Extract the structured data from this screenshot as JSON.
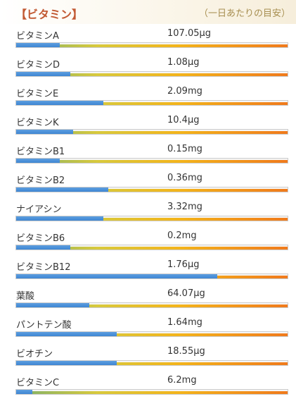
{
  "header": {
    "title": "【ビタミン】",
    "note": "（一日あたりの目安）"
  },
  "vitamins": [
    {
      "name": "ビタミンA",
      "value": "107.05μg",
      "fill": 0.16
    },
    {
      "name": "ビタミンD",
      "value": "1.08μg",
      "fill": 0.2
    },
    {
      "name": "ビタミンE",
      "value": "2.09mg",
      "fill": 0.32
    },
    {
      "name": "ビタミンK",
      "value": "10.4μg",
      "fill": 0.21
    },
    {
      "name": "ビタミンB1",
      "value": "0.15mg",
      "fill": 0.16
    },
    {
      "name": "ビタミンB2",
      "value": "0.36mg",
      "fill": 0.34
    },
    {
      "name": "ナイアシン",
      "value": "3.32mg",
      "fill": 0.32
    },
    {
      "name": "ビタミンB6",
      "value": "0.2mg",
      "fill": 0.2
    },
    {
      "name": "ビタミンB12",
      "value": "1.76μg",
      "fill": 0.74
    },
    {
      "name": "葉酸",
      "value": "64.07μg",
      "fill": 0.27
    },
    {
      "name": "パントテン酸",
      "value": "1.64mg",
      "fill": 0.37
    },
    {
      "name": "ビオチン",
      "value": "18.55μg",
      "fill": 0.37
    },
    {
      "name": "ビタミンC",
      "value": "6.2mg",
      "fill": 0.06
    }
  ]
}
